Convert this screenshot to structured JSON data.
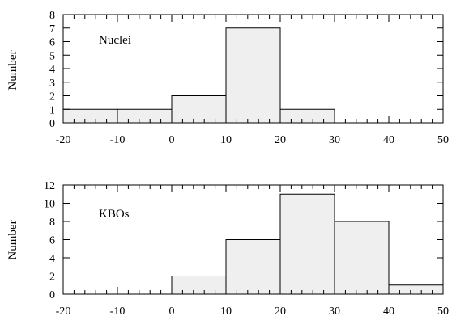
{
  "chart_data": [
    {
      "type": "bar",
      "label": "Nuclei",
      "ylabel": "Number",
      "xlim": [
        -20,
        50
      ],
      "ylim": [
        0,
        8
      ],
      "x_ticks": [
        "-20",
        "-10",
        "0",
        "10",
        "20",
        "30",
        "40",
        "50"
      ],
      "y_ticks": [
        "0",
        "1",
        "2",
        "3",
        "4",
        "5",
        "6",
        "7",
        "8"
      ],
      "bins": [
        {
          "x0": -20,
          "x1": -10,
          "count": 1
        },
        {
          "x0": -10,
          "x1": 0,
          "count": 1
        },
        {
          "x0": 0,
          "x1": 10,
          "count": 2
        },
        {
          "x0": 10,
          "x1": 20,
          "count": 7
        },
        {
          "x0": 20,
          "x1": 30,
          "count": 1
        }
      ]
    },
    {
      "type": "bar",
      "label": "KBOs",
      "ylabel": "Number",
      "xlim": [
        -20,
        50
      ],
      "ylim": [
        0,
        12
      ],
      "x_ticks": [
        "-20",
        "-10",
        "0",
        "10",
        "20",
        "30",
        "40",
        "50"
      ],
      "y_ticks": [
        "0",
        "2",
        "4",
        "6",
        "8",
        "10",
        "12"
      ],
      "bins": [
        {
          "x0": 0,
          "x1": 10,
          "count": 2
        },
        {
          "x0": 10,
          "x1": 20,
          "count": 6
        },
        {
          "x0": 20,
          "x1": 30,
          "count": 11
        },
        {
          "x0": 30,
          "x1": 40,
          "count": 8
        },
        {
          "x0": 40,
          "x1": 50,
          "count": 1
        }
      ]
    }
  ]
}
